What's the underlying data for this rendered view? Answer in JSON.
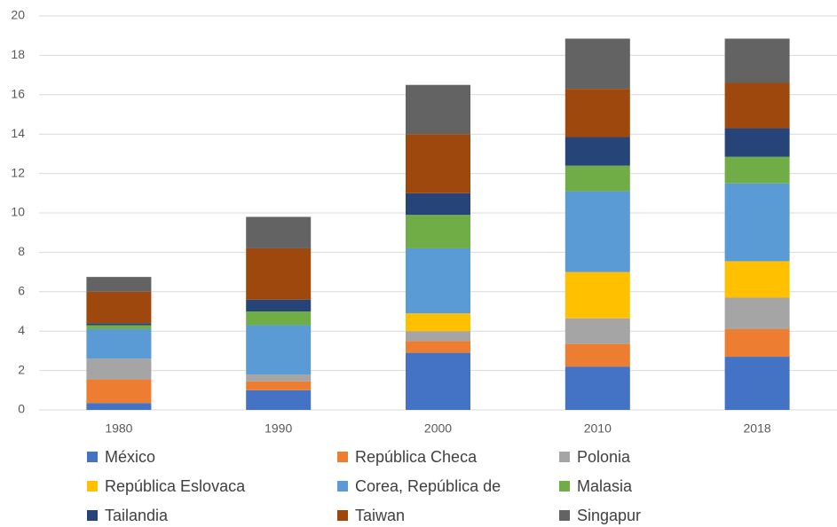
{
  "chart_data": {
    "type": "stacked_bar",
    "categories": [
      "1980",
      "1990",
      "2000",
      "2010",
      "2018"
    ],
    "series": [
      {
        "name": "México",
        "color": "#4472c4",
        "values": [
          0.35,
          1.0,
          2.9,
          2.2,
          2.7
        ]
      },
      {
        "name": "República Checa",
        "color": "#ed7d31",
        "values": [
          1.2,
          0.45,
          0.6,
          1.15,
          1.4
        ]
      },
      {
        "name": "Polonia",
        "color": "#a5a5a5",
        "values": [
          1.05,
          0.35,
          0.5,
          1.3,
          1.6
        ]
      },
      {
        "name": "República Eslovaca",
        "color": "#ffc000",
        "values": [
          0,
          0,
          0.9,
          2.35,
          1.85
        ]
      },
      {
        "name": "Corea, República de",
        "color": "#5b9bd5",
        "values": [
          1.5,
          2.5,
          3.3,
          4.1,
          3.95
        ]
      },
      {
        "name": "Malasia",
        "color": "#70ad47",
        "values": [
          0.2,
          0.7,
          1.7,
          1.3,
          1.35
        ]
      },
      {
        "name": "Tailandia",
        "color": "#264478",
        "values": [
          0.1,
          0.6,
          1.1,
          1.45,
          1.45
        ]
      },
      {
        "name": "Taiwan",
        "color": "#9e480e",
        "values": [
          1.6,
          2.6,
          3.0,
          2.45,
          2.3
        ]
      },
      {
        "name": "Singapur",
        "color": "#636363",
        "values": [
          0.75,
          1.6,
          2.5,
          2.55,
          2.25
        ]
      }
    ],
    "ylim": [
      0,
      20
    ],
    "yticks": [
      0,
      2,
      4,
      6,
      8,
      10,
      12,
      14,
      16,
      18,
      20
    ],
    "grid": true
  }
}
